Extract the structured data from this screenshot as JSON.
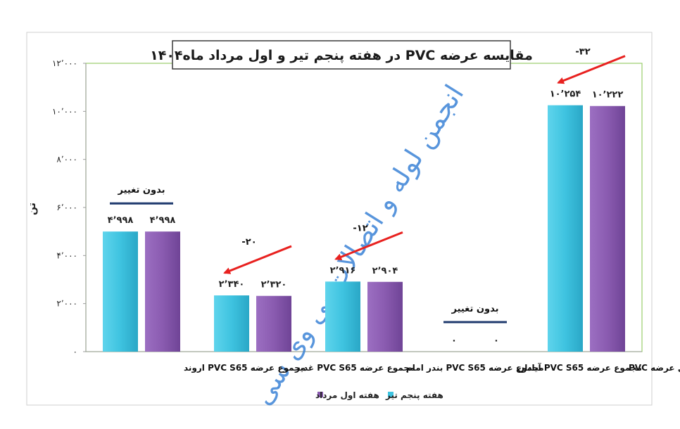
{
  "chart_data": {
    "type": "bar",
    "title": "مقایسه عرضه PVC در هفته پنجم تیر و اول مرداد ماه۱۴۰۴",
    "ylabel": "تن",
    "xlabel": "",
    "ylim": [
      0,
      12000
    ],
    "yticks": [
      0,
      2000,
      4000,
      6000,
      8000,
      10000,
      12000
    ],
    "ytick_labels": [
      "۰",
      "۲٬۰۰۰",
      "۴٬۰۰۰",
      "۶٬۰۰۰",
      "۸٬۰۰۰",
      "۱۰٬۰۰۰",
      "۱۲٬۰۰۰"
    ],
    "grid": false,
    "legend_position": "bottom",
    "categories": [
      "مجموع عرضه PVC S65 اروند",
      "مجموع عرضه PVC S65 غدیر",
      "مجموع عرضه PVC S65 بندر امام",
      "مجموع عرضه PVC S65 آبادان",
      "مجموع کل عرضه PVC"
    ],
    "series": [
      {
        "name": "هفته پنجم تیر",
        "color": "#3ec3e0",
        "values": [
          4998,
          2340,
          2916,
          0,
          10254
        ],
        "labels": [
          "۴٬۹۹۸",
          "۲٬۳۴۰",
          "۲٬۹۱۶",
          "۰",
          "۱۰٬۲۵۴"
        ]
      },
      {
        "name": "هفته اول مرداد",
        "color": "#8a5bb0",
        "values": [
          4998,
          2320,
          2904,
          0,
          10222
        ],
        "labels": [
          "۴٬۹۹۸",
          "۲٬۳۲۰",
          "۲٬۹۰۴",
          "۰",
          "۱۰٬۲۲۲"
        ]
      }
    ],
    "annotations": [
      {
        "category": 0,
        "text": "بدون تغییر",
        "kind": "no-change"
      },
      {
        "category": 1,
        "text": "-۲۰",
        "kind": "decrease"
      },
      {
        "category": 2,
        "text": "-۱۲",
        "kind": "decrease"
      },
      {
        "category": 3,
        "text": "بدون تغییر",
        "kind": "no-change"
      },
      {
        "category": 4,
        "text": "-۳۲",
        "kind": "decrease"
      }
    ],
    "watermark": "انجمن لوله و اتصالات پی وی سی"
  },
  "colors": {
    "arrow": "#e8211f",
    "no_change_line": "#1f3a6e",
    "plot_border": "#9acd6b",
    "axis": "#9a9a9a"
  }
}
